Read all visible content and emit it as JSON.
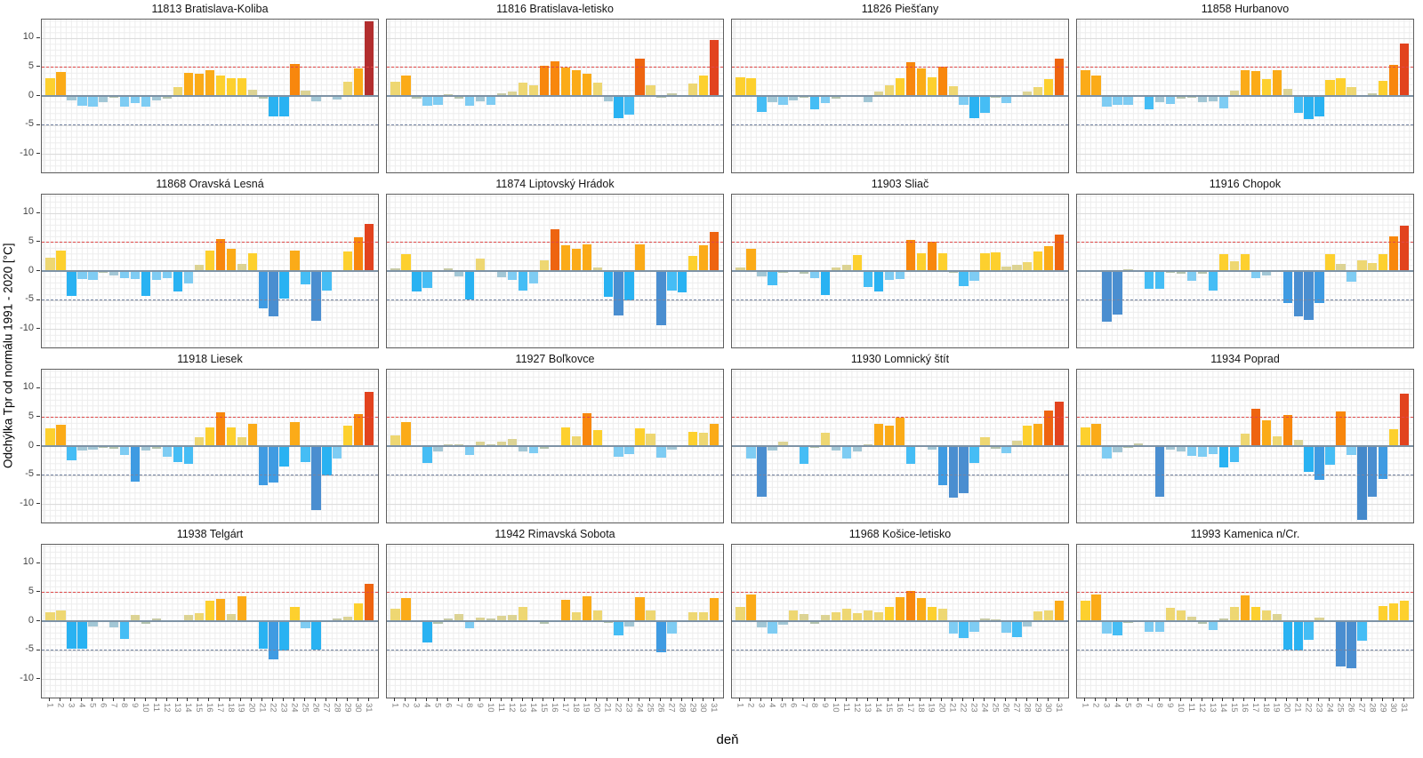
{
  "y_axis": {
    "label": "Odchýlka Tpr od normálu 1991 - 2020 [°C]",
    "ticks": [
      10,
      5,
      0,
      -5,
      -10
    ]
  },
  "x_axis": {
    "label": "deň",
    "ticks": [
      1,
      2,
      3,
      4,
      5,
      6,
      7,
      8,
      9,
      10,
      11,
      12,
      13,
      14,
      15,
      16,
      17,
      18,
      19,
      20,
      21,
      22,
      23,
      24,
      25,
      26,
      27,
      28,
      29,
      30,
      31
    ]
  },
  "layout": {
    "rows": 4,
    "cols": 4,
    "ylim": [
      -13.2,
      13.2
    ],
    "grid": true,
    "legend": "none"
  },
  "reference_lines": [
    {
      "value": 5,
      "style": "dashed",
      "color": "#e04848"
    },
    {
      "value": -5,
      "style": "dashed",
      "color": "#7585a3"
    },
    {
      "value": 0,
      "style": "solid",
      "color": "#7e93a6"
    }
  ],
  "palette": [
    {
      "min": 10.5,
      "color": "#b22e2e"
    },
    {
      "min": 7.4,
      "color": "#e2431e"
    },
    {
      "min": 6.05,
      "color": "#ee6410"
    },
    {
      "min": 4.95,
      "color": "#f8870d"
    },
    {
      "min": 3.55,
      "color": "#fbab18"
    },
    {
      "min": 2.45,
      "color": "#fdd02e"
    },
    {
      "min": 1.35,
      "color": "#eed772"
    },
    {
      "min": 0.55,
      "color": "#dcd394"
    },
    {
      "min": 0.001,
      "color": "#c6c9a5"
    },
    {
      "min": -0.55,
      "color": "#b3c3ad"
    },
    {
      "min": -1.15,
      "color": "#a2c7d6"
    },
    {
      "min": -2.25,
      "color": "#7eccf3"
    },
    {
      "min": -3.45,
      "color": "#45bdf5"
    },
    {
      "min": -5.25,
      "color": "#29b2f2"
    },
    {
      "min": -7.25,
      "color": "#3f9be2"
    },
    {
      "min": -11.2,
      "color": "#4a8ed0"
    },
    {
      "min": -99,
      "color": "#4489cb"
    }
  ],
  "chart_data": [
    {
      "type": "bar",
      "title": "11813 Bratislava-Koliba",
      "values": [
        3.0,
        4.1,
        -0.8,
        -1.7,
        -1.8,
        -1.0,
        -0.3,
        -1.8,
        -1.3,
        -1.9,
        -0.7,
        -0.5,
        1.5,
        4.0,
        3.9,
        4.5,
        3.5,
        3.1,
        3.0,
        1.1,
        -0.4,
        -3.5,
        -3.6,
        5.6,
        0.9,
        -0.9,
        0,
        -0.6,
        2.4,
        4.7,
        12.9
      ]
    },
    {
      "type": "bar",
      "title": "11816 Bratislava-letisko",
      "values": [
        2.4,
        3.6,
        -0.4,
        -1.7,
        -1.5,
        0.3,
        -0.4,
        -1.7,
        -0.9,
        -1.5,
        0.5,
        0.7,
        2.3,
        1.9,
        5.2,
        6.0,
        4.9,
        4.5,
        3.9,
        2.3,
        -0.9,
        -3.9,
        -3.2,
        6.5,
        1.9,
        -0.3,
        0.4,
        0.1,
        2.2,
        3.5,
        9.6
      ]
    },
    {
      "type": "bar",
      "title": "11826 Piešťany",
      "values": [
        3.3,
        3.1,
        -2.7,
        -1.1,
        -1.5,
        -0.8,
        -0.3,
        -2.3,
        -1.3,
        -0.4,
        0.2,
        0.1,
        -1.0,
        0.7,
        1.9,
        3.0,
        5.9,
        4.7,
        3.3,
        5.0,
        1.7,
        -1.6,
        -3.9,
        -2.9,
        -0.3,
        -1.2,
        0.2,
        0.8,
        1.5,
        2.9,
        6.5
      ]
    },
    {
      "type": "bar",
      "title": "11858 Hurbanovo",
      "values": [
        4.4,
        3.6,
        -1.8,
        -1.5,
        -1.6,
        0,
        -2.3,
        -1.1,
        -1.4,
        -0.5,
        -0.3,
        -1.0,
        -0.9,
        -2.2,
        0.9,
        4.4,
        4.3,
        2.9,
        4.4,
        1.2,
        -2.9,
        -4.0,
        -3.5,
        2.8,
        3.0,
        1.5,
        0.2,
        0.5,
        2.6,
        5.3,
        9.1
      ]
    },
    {
      "type": "bar",
      "title": "11868 Oravská Lesná",
      "values": [
        2.3,
        3.5,
        -4.3,
        -1.4,
        -1.5,
        -0.3,
        -0.8,
        -1.2,
        -1.4,
        -4.3,
        -1.5,
        -1.3,
        -3.5,
        -2.1,
        1.0,
        3.5,
        5.5,
        3.8,
        1.2,
        3.0,
        -6.4,
        -7.9,
        -4.8,
        3.6,
        -2.3,
        -8.6,
        -3.3,
        0.2,
        3.4,
        5.9,
        8.2
      ]
    },
    {
      "type": "bar",
      "title": "11874 Liptovský Hrádok",
      "values": [
        0.5,
        2.9,
        -3.5,
        -2.9,
        -0.1,
        0.4,
        -0.9,
        -4.9,
        2.1,
        -0.2,
        -1.1,
        -1.5,
        -3.3,
        -2.1,
        1.9,
        7.2,
        4.5,
        3.9,
        4.6,
        0.6,
        -4.4,
        -7.7,
        -5.0,
        4.6,
        -0.2,
        -9.3,
        -3.4,
        -3.7,
        2.6,
        4.5,
        6.8
      ]
    },
    {
      "type": "bar",
      "title": "11903 Sliač",
      "values": [
        0.6,
        3.8,
        -0.9,
        -2.5,
        -0.3,
        -0.2,
        -0.4,
        -1.3,
        -4.1,
        0.6,
        1.1,
        2.8,
        -2.8,
        -3.6,
        -1.5,
        -1.4,
        5.4,
        3.0,
        5.1,
        3.0,
        -0.3,
        -2.6,
        -1.7,
        3.0,
        3.3,
        0.7,
        1.0,
        1.6,
        3.4,
        4.3,
        6.3
      ]
    },
    {
      "type": "bar",
      "title": "11916 Chopok",
      "values": [
        0,
        -0.2,
        -8.8,
        -7.5,
        0.3,
        -0.1,
        -3.0,
        -3.1,
        -0.3,
        -0.5,
        -1.7,
        -0.4,
        -3.3,
        2.9,
        1.7,
        2.9,
        -1.2,
        -0.8,
        0.1,
        -5.5,
        -7.8,
        -8.5,
        -5.6,
        2.9,
        1.2,
        -1.8,
        1.8,
        1.4,
        2.9,
        6.0,
        7.9
      ]
    },
    {
      "type": "bar",
      "title": "11918 Liesek",
      "values": [
        3.0,
        3.7,
        -2.5,
        -0.7,
        -0.6,
        -0.3,
        -0.4,
        -1.6,
        -6.2,
        -0.7,
        -0.4,
        -1.9,
        -2.7,
        -3.1,
        1.6,
        3.2,
        5.8,
        3.3,
        1.6,
        3.8,
        -6.7,
        -6.3,
        -3.5,
        4.1,
        -2.7,
        -11.0,
        -5.0,
        -2.1,
        3.5,
        5.6,
        9.3
      ]
    },
    {
      "type": "bar",
      "title": "11927 Boľkovce",
      "values": [
        1.9,
        4.1,
        -0.1,
        -2.9,
        -0.9,
        0.3,
        0.3,
        -1.6,
        0.7,
        0.3,
        0.8,
        1.2,
        -0.9,
        -1.2,
        -0.5,
        -0.1,
        3.3,
        1.7,
        5.7,
        2.8,
        0.2,
        -1.8,
        -1.4,
        3.0,
        2.2,
        -2.0,
        -0.6,
        0.2,
        2.5,
        2.3,
        3.9
      ]
    },
    {
      "type": "bar",
      "title": "11930 Lomnický štít",
      "values": [
        0,
        -2.2,
        -8.8,
        -0.7,
        0.7,
        0.2,
        -3.0,
        -0.3,
        2.3,
        -0.8,
        -2.1,
        -0.9,
        0.3,
        3.9,
        3.6,
        4.9,
        -3.1,
        0.1,
        -0.6,
        -6.7,
        -8.9,
        -8.2,
        -2.9,
        1.6,
        -0.4,
        -1.2,
        0.9,
        3.5,
        3.9,
        6.1,
        7.6
      ]
    },
    {
      "type": "bar",
      "title": "11934 Poprad",
      "values": [
        3.3,
        3.9,
        -2.2,
        -1.0,
        -0.3,
        0.4,
        -0.2,
        -8.7,
        -0.6,
        -0.9,
        -1.7,
        -1.9,
        -1.4,
        -3.7,
        -2.8,
        2.2,
        6.4,
        4.5,
        1.7,
        5.3,
        1.1,
        -4.5,
        -5.8,
        -3.2,
        6.0,
        -1.6,
        -12.8,
        -8.8,
        -5.7,
        2.9,
        9.1
      ]
    },
    {
      "type": "bar",
      "title": "11938 Telgárt",
      "values": [
        1.5,
        1.8,
        -4.8,
        -4.7,
        -0.9,
        0,
        -1.0,
        -3.0,
        1.1,
        -0.4,
        0.5,
        -0.2,
        0,
        1.0,
        1.4,
        3.5,
        3.8,
        1.2,
        4.3,
        0.2,
        -4.7,
        -6.6,
        -5.0,
        2.5,
        -1.2,
        -4.9,
        0.1,
        0.5,
        0.7,
        3.1,
        6.4
      ]
    },
    {
      "type": "bar",
      "title": "11942 Rimavská Sobota",
      "values": [
        2.1,
        4.0,
        0,
        -3.7,
        -0.4,
        0.5,
        1.3,
        -1.2,
        0.6,
        0.5,
        0.9,
        1.1,
        2.4,
        0,
        -0.4,
        0,
        3.7,
        1.5,
        4.3,
        1.9,
        -0.3,
        -2.4,
        -0.9,
        4.2,
        1.9,
        -5.4,
        -2.1,
        -0.1,
        1.6,
        1.5,
        4.0
      ]
    },
    {
      "type": "bar",
      "title": "11968 Košice-letisko",
      "values": [
        2.4,
        4.6,
        -1.0,
        -2.2,
        -0.6,
        1.9,
        1.3,
        -0.5,
        1.0,
        1.5,
        2.2,
        1.4,
        1.9,
        1.5,
        2.5,
        4.2,
        5.2,
        4.0,
        2.5,
        2.2,
        -2.2,
        -2.9,
        -1.9,
        0.4,
        0.3,
        -2.0,
        -2.8,
        -0.9,
        1.7,
        1.9,
        3.6
      ]
    },
    {
      "type": "bar",
      "title": "11993 Kamenica n/Cr.",
      "values": [
        3.5,
        4.6,
        -2.1,
        -2.4,
        -0.3,
        0.2,
        -1.8,
        -1.8,
        2.3,
        1.9,
        0.7,
        -0.5,
        -1.5,
        0.5,
        2.4,
        4.5,
        2.5,
        1.9,
        1.2,
        -4.9,
        -5.1,
        -3.2,
        0.6,
        -0.2,
        -7.8,
        -8.1,
        -3.3,
        0,
        2.6,
        3.1,
        3.5
      ]
    }
  ]
}
